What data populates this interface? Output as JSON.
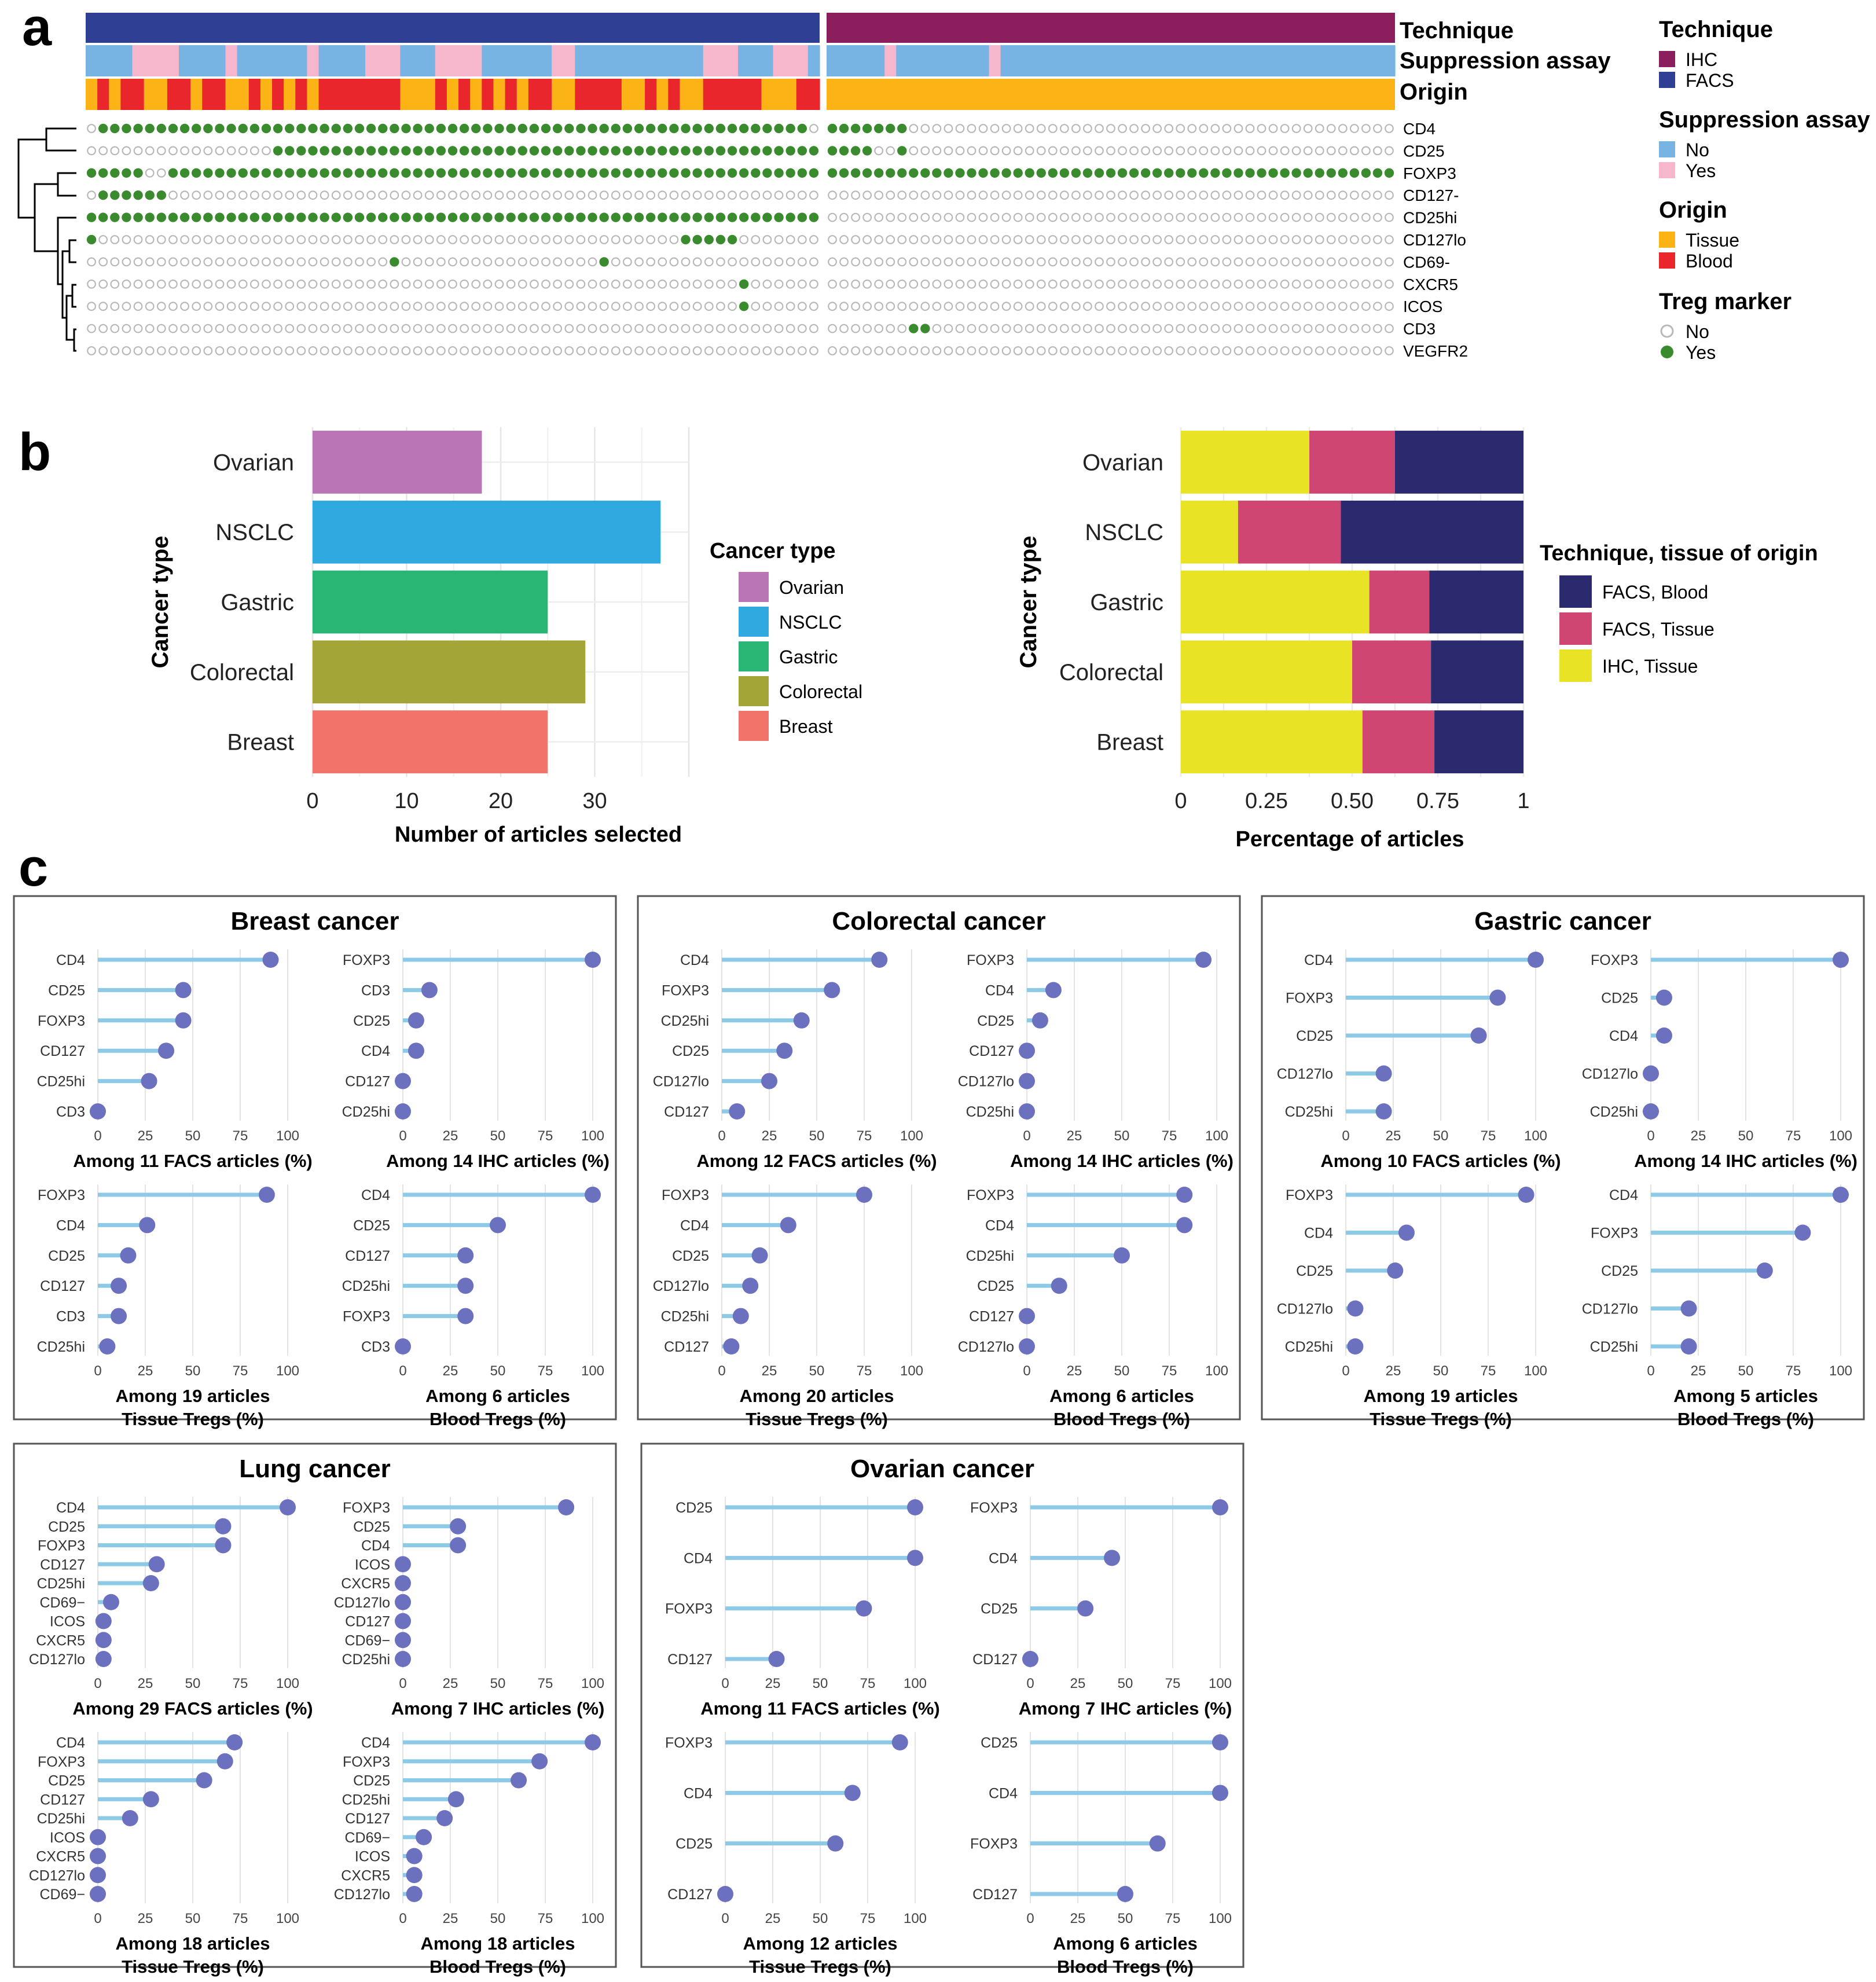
{
  "panel_labels": {
    "a": "a",
    "b": "b",
    "c": "c"
  },
  "heatmap": {
    "row_labels": {
      "technique": "Technique",
      "suppression": "Suppression assay",
      "origin": "Origin"
    },
    "marker_rows": [
      "CD4",
      "CD25",
      "FOXP3",
      "CD127-",
      "CD25hi",
      "CD127lo",
      "CD69-",
      "CXCR5",
      "ICOS",
      "CD3",
      "VEGFR2"
    ],
    "n_facs": 63,
    "n_ihc": 49,
    "colors": {
      "ihc": "#8B1E5C",
      "facs": "#2F3F93",
      "supp_no": "#78B4E3",
      "supp_yes": "#F6B6CC",
      "tissue": "#FBB316",
      "blood": "#E8262C",
      "marker_yes": "#3A8A2E",
      "marker_no": "#B8B8B8"
    },
    "suppression_yes_facs": [
      4,
      5,
      6,
      7,
      12,
      19,
      24,
      25,
      26,
      30,
      31,
      32,
      33,
      40,
      41,
      53,
      54,
      55,
      59,
      60,
      61
    ],
    "suppression_yes_ihc": [
      5,
      14
    ],
    "origin_blood_facs": [
      1,
      3,
      4,
      7,
      8,
      10,
      11,
      14,
      16,
      18,
      20,
      21,
      22,
      23,
      24,
      25,
      26,
      30,
      32,
      34,
      36,
      38,
      39,
      42,
      43,
      44,
      45,
      48,
      50,
      53,
      54,
      55,
      56,
      57,
      61,
      62
    ],
    "marker_yes": {
      "CD4": {
        "facs": [
          1,
          2,
          3,
          4,
          5,
          6,
          7,
          8,
          9,
          10,
          11,
          12,
          13,
          14,
          15,
          16,
          17,
          18,
          19,
          20,
          21,
          22,
          23,
          24,
          25,
          26,
          27,
          28,
          29,
          30,
          31,
          32,
          33,
          34,
          35,
          36,
          37,
          38,
          39,
          40,
          41,
          42,
          43,
          44,
          45,
          46,
          47,
          48,
          49,
          50,
          51,
          52,
          53,
          54,
          55,
          56,
          57,
          58,
          59,
          60,
          61
        ],
        "ihc": [
          0,
          1,
          2,
          3,
          4,
          5,
          6
        ]
      },
      "CD25": {
        "facs": [
          16,
          17,
          18,
          19,
          20,
          21,
          22,
          23,
          24,
          25,
          26,
          27,
          28,
          29,
          30,
          31,
          32,
          33,
          34,
          35,
          36,
          37,
          38,
          39,
          40,
          41,
          42,
          43,
          44,
          45,
          46,
          47,
          48,
          49,
          50,
          51,
          52,
          53,
          54,
          55,
          56,
          57,
          58,
          59,
          60,
          61,
          62
        ],
        "ihc": [
          0,
          1,
          2,
          3,
          6
        ]
      },
      "FOXP3": {
        "facs": [
          0,
          1,
          2,
          3,
          4,
          7,
          8,
          9,
          10,
          11,
          12,
          13,
          14,
          15,
          16,
          17,
          18,
          19,
          20,
          21,
          22,
          23,
          24,
          25,
          26,
          27,
          28,
          29,
          30,
          31,
          32,
          33,
          34,
          35,
          36,
          37,
          38,
          39,
          40,
          41,
          42,
          43,
          44,
          45,
          46,
          47,
          48,
          49,
          50,
          51,
          52,
          53,
          54,
          55,
          56,
          57,
          58,
          59,
          60,
          61,
          62
        ],
        "ihc": [
          0,
          1,
          2,
          3,
          4,
          5,
          6,
          7,
          8,
          9,
          10,
          11,
          12,
          13,
          14,
          15,
          16,
          17,
          18,
          19,
          20,
          21,
          22,
          23,
          24,
          25,
          26,
          27,
          28,
          29,
          30,
          31,
          32,
          33,
          34,
          35,
          36,
          37,
          38,
          39,
          40,
          41,
          42,
          43,
          44,
          45,
          46,
          47,
          48
        ]
      },
      "CD127-": {
        "facs": [
          1,
          2,
          3,
          4,
          5,
          6
        ],
        "ihc": []
      },
      "CD25hi": {
        "facs": [
          0,
          1,
          2,
          3,
          4,
          5,
          6,
          7,
          8,
          9,
          10,
          11,
          12,
          13,
          14,
          15,
          16,
          17,
          18,
          19,
          20,
          21,
          22,
          23,
          24,
          25,
          26,
          27,
          28,
          29,
          30,
          31,
          32,
          33,
          34,
          35,
          36,
          37,
          38,
          39,
          40,
          41,
          42,
          43,
          44,
          45,
          46,
          47,
          48,
          49,
          50,
          51,
          52,
          53,
          54,
          55,
          56,
          57,
          58,
          59,
          60,
          61,
          62
        ],
        "ihc": []
      },
      "CD127lo": {
        "facs": [
          0,
          51,
          52,
          53,
          54,
          55
        ],
        "ihc": []
      },
      "CD69-": {
        "facs": [
          26,
          44
        ],
        "ihc": []
      },
      "CXCR5": {
        "facs": [
          56
        ],
        "ihc": []
      },
      "ICOS": {
        "facs": [
          56
        ],
        "ihc": []
      },
      "CD3": {
        "facs": [],
        "ihc": [
          7,
          8
        ]
      },
      "VEGFR2": {
        "facs": [],
        "ihc": []
      }
    },
    "legend": {
      "technique": {
        "title": "Technique",
        "items": [
          "IHC",
          "FACS"
        ]
      },
      "suppression": {
        "title": "Suppression assay",
        "items": [
          "No",
          "Yes"
        ]
      },
      "origin": {
        "title": "Origin",
        "items": [
          "Tissue",
          "Blood"
        ]
      },
      "treg": {
        "title": "Treg marker",
        "items": [
          "No",
          "Yes"
        ]
      }
    }
  },
  "chart_data": [
    {
      "type": "bar",
      "id": "b_left",
      "orientation": "horizontal",
      "categories": [
        "Ovarian",
        "NSCLC",
        "Gastric",
        "Colorectal",
        "Breast"
      ],
      "values": [
        18,
        37,
        25,
        29,
        25
      ],
      "colors": [
        "#BA75B6",
        "#2FA9E0",
        "#29B674",
        "#A3A636",
        "#F27369"
      ],
      "xlabel": "Number of articles selected",
      "ylabel": "Cancer type",
      "xlim": [
        0,
        40
      ],
      "xticks": [
        0,
        10,
        20,
        30
      ],
      "legend_title": "Cancer type",
      "legend": [
        "Ovarian",
        "NSCLC",
        "Gastric",
        "Colorectal",
        "Breast"
      ]
    },
    {
      "type": "bar",
      "id": "b_right",
      "stacked": true,
      "orientation": "horizontal",
      "categories": [
        "Ovarian",
        "NSCLC",
        "Gastric",
        "Colorectal",
        "Breast"
      ],
      "series": [
        {
          "name": "IHC, Tissue",
          "color": "#E9E325",
          "values": [
            0.375,
            0.167,
            0.55,
            0.5,
            0.53
          ]
        },
        {
          "name": "FACS, Tissue",
          "color": "#CE4671",
          "values": [
            0.25,
            0.3,
            0.175,
            0.23,
            0.21
          ]
        },
        {
          "name": "FACS, Blood",
          "color": "#2B2A6F",
          "values": [
            0.375,
            0.533,
            0.275,
            0.27,
            0.26
          ]
        }
      ],
      "xlabel": "Percentage of articles",
      "ylabel": "Cancer type",
      "xlim": [
        0,
        1
      ],
      "xticks": [
        "0",
        "0.25",
        "0.50",
        "0.75",
        "1"
      ],
      "legend_title": "Technique, tissue of origin",
      "legend": [
        "FACS, Blood",
        "FACS, Tissue",
        "IHC, Tissue"
      ]
    },
    {
      "type": "lollipop",
      "id": "c_panels",
      "xticks": [
        0,
        25,
        50,
        75,
        100
      ],
      "panels": [
        {
          "title": "Breast cancer",
          "subplots": [
            {
              "caption": [
                "Among 11 FACS articles (%)"
              ],
              "labels": [
                "CD4",
                "CD25",
                "FOXP3",
                "CD127",
                "CD25hi",
                "CD3"
              ],
              "values": [
                91,
                45,
                45,
                36,
                27,
                0
              ]
            },
            {
              "caption": [
                "Among 14 IHC articles (%)"
              ],
              "labels": [
                "FOXP3",
                "CD3",
                "CD25",
                "CD4",
                "CD127",
                "CD25hi"
              ],
              "values": [
                100,
                14,
                7,
                7,
                0,
                0
              ]
            },
            {
              "caption": [
                "Among 19 articles",
                "Tissue Tregs (%)"
              ],
              "labels": [
                "FOXP3",
                "CD4",
                "CD25",
                "CD127",
                "CD3",
                "CD25hi"
              ],
              "values": [
                89,
                26,
                16,
                11,
                11,
                5
              ]
            },
            {
              "caption": [
                "Among 6 articles",
                "Blood Tregs (%)"
              ],
              "labels": [
                "CD4",
                "CD25",
                "CD127",
                "CD25hi",
                "FOXP3",
                "CD3"
              ],
              "values": [
                100,
                50,
                33,
                33,
                33,
                0
              ]
            }
          ]
        },
        {
          "title": "Colorectal cancer",
          "subplots": [
            {
              "caption": [
                "Among 12 FACS articles (%)"
              ],
              "labels": [
                "CD4",
                "FOXP3",
                "CD25hi",
                "CD25",
                "CD127lo",
                "CD127"
              ],
              "values": [
                83,
                58,
                42,
                33,
                25,
                8
              ]
            },
            {
              "caption": [
                "Among 14 IHC articles (%)"
              ],
              "labels": [
                "FOXP3",
                "CD4",
                "CD25",
                "CD127",
                "CD127lo",
                "CD25hi"
              ],
              "values": [
                93,
                14,
                7,
                0,
                0,
                0
              ]
            },
            {
              "caption": [
                "Among 20 articles",
                "Tissue Tregs (%)"
              ],
              "labels": [
                "FOXP3",
                "CD4",
                "CD25",
                "CD127lo",
                "CD25hi",
                "CD127"
              ],
              "values": [
                75,
                35,
                20,
                15,
                10,
                5
              ]
            },
            {
              "caption": [
                "Among 6 articles",
                "Blood Tregs (%)"
              ],
              "labels": [
                "FOXP3",
                "CD4",
                "CD25hi",
                "CD25",
                "CD127",
                "CD127lo"
              ],
              "values": [
                83,
                83,
                50,
                17,
                0,
                0
              ]
            }
          ]
        },
        {
          "title": "Gastric cancer",
          "subplots": [
            {
              "caption": [
                "Among 10 FACS articles (%)"
              ],
              "labels": [
                "CD4",
                "FOXP3",
                "CD25",
                "CD127lo",
                "CD25hi"
              ],
              "values": [
                100,
                80,
                70,
                20,
                20
              ]
            },
            {
              "caption": [
                "Among 14 IHC articles (%)"
              ],
              "labels": [
                "FOXP3",
                "CD25",
                "CD4",
                "CD127lo",
                "CD25hi"
              ],
              "values": [
                100,
                7,
                7,
                0,
                0
              ]
            },
            {
              "caption": [
                "Among 19 articles",
                "Tissue Tregs (%)"
              ],
              "labels": [
                "FOXP3",
                "CD4",
                "CD25",
                "CD127lo",
                "CD25hi"
              ],
              "values": [
                95,
                32,
                26,
                5,
                5
              ]
            },
            {
              "caption": [
                "Among 5 articles",
                "Blood Tregs (%)"
              ],
              "labels": [
                "CD4",
                "FOXP3",
                "CD25",
                "CD127lo",
                "CD25hi"
              ],
              "values": [
                100,
                80,
                60,
                20,
                20
              ]
            }
          ]
        },
        {
          "title": "Lung cancer",
          "subplots": [
            {
              "caption": [
                "Among 29 FACS articles (%)"
              ],
              "labels": [
                "CD4",
                "CD25",
                "FOXP3",
                "CD127",
                "CD25hi",
                "CD69−",
                "ICOS",
                "CXCR5",
                "CD127lo"
              ],
              "values": [
                100,
                66,
                66,
                31,
                28,
                7,
                3,
                3,
                3
              ]
            },
            {
              "caption": [
                "Among 7 IHC articles (%)"
              ],
              "labels": [
                "FOXP3",
                "CD25",
                "CD4",
                "ICOS",
                "CXCR5",
                "CD127lo",
                "CD127",
                "CD69−",
                "CD25hi"
              ],
              "values": [
                86,
                29,
                29,
                0,
                0,
                0,
                0,
                0,
                0
              ]
            },
            {
              "caption": [
                "Among 18 articles",
                "Tissue Tregs (%)"
              ],
              "labels": [
                "CD4",
                "FOXP3",
                "CD25",
                "CD127",
                "CD25hi",
                "ICOS",
                "CXCR5",
                "CD127lo",
                "CD69−"
              ],
              "values": [
                72,
                67,
                56,
                28,
                17,
                0,
                0,
                0,
                0
              ]
            },
            {
              "caption": [
                "Among 18 articles",
                "Blood Tregs (%)"
              ],
              "labels": [
                "CD4",
                "FOXP3",
                "CD25",
                "CD25hi",
                "CD127",
                "CD69−",
                "ICOS",
                "CXCR5",
                "CD127lo"
              ],
              "values": [
                100,
                72,
                61,
                28,
                22,
                11,
                6,
                6,
                6
              ]
            }
          ]
        },
        {
          "title": "Ovarian cancer",
          "subplots": [
            {
              "caption": [
                "Among 11 FACS articles (%)"
              ],
              "labels": [
                "CD25",
                "CD4",
                "FOXP3",
                "CD127"
              ],
              "values": [
                100,
                100,
                73,
                27
              ]
            },
            {
              "caption": [
                "Among 7 IHC articles (%)"
              ],
              "labels": [
                "FOXP3",
                "CD4",
                "CD25",
                "CD127"
              ],
              "values": [
                100,
                43,
                29,
                0
              ]
            },
            {
              "caption": [
                "Among 12 articles",
                "Tissue Tregs (%)"
              ],
              "labels": [
                "FOXP3",
                "CD4",
                "CD25",
                "CD127"
              ],
              "values": [
                92,
                67,
                58,
                0
              ]
            },
            {
              "caption": [
                "Among 6 articles",
                "Blood Tregs (%)"
              ],
              "labels": [
                "CD25",
                "CD4",
                "FOXP3",
                "CD127"
              ],
              "values": [
                100,
                100,
                67,
                50
              ]
            }
          ]
        }
      ]
    }
  ]
}
